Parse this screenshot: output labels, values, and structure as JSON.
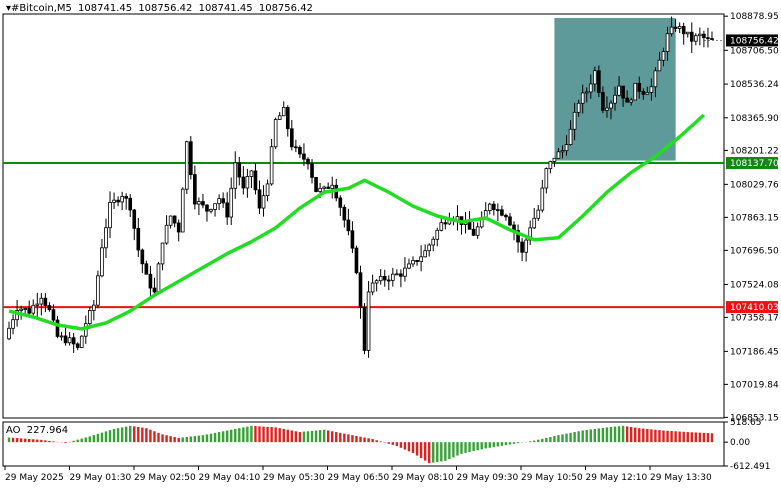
{
  "header": {
    "symbol": "▾#Bitcoin,M5",
    "open": "108741.45",
    "high": "108756.42",
    "low": "108741.45",
    "close": "108756.42"
  },
  "ao_header": {
    "name": "AO",
    "value": "227.964"
  },
  "colors": {
    "candle": "#000000",
    "ma": "#22dd22",
    "support": "#ee1111",
    "resistance": "#118811",
    "box": "#5f9a9a",
    "ao_up": "#3aa13a",
    "ao_down": "#dd2222"
  },
  "chart_data": [
    {
      "type": "candlestick",
      "title": "",
      "ylim": [
        106850,
        108890
      ],
      "y_ticks": [
        "108878.95",
        "108706.50",
        "108536.24",
        "108365.90",
        "108201.22",
        "108029.76",
        "107863.15",
        "107696.50",
        "107524.08",
        "107358.17",
        "107186.45",
        "107019.84",
        "106853.15"
      ],
      "x_ticks": [
        "29 May 2025",
        "29 May 01:30",
        "29 May 02:50",
        "29 May 04:10",
        "29 May 05:30",
        "29 May 06:50",
        "29 May 08:10",
        "29 May 09:30",
        "29 May 10:50",
        "29 May 12:10",
        "29 May 13:30"
      ],
      "current_price_label": "108756.42",
      "current_price": 108756.42,
      "levels": [
        {
          "label": "108137.70",
          "value": 108137.7,
          "kind": "resistance"
        },
        {
          "label": "107410.03",
          "value": 107410.03,
          "kind": "support"
        }
      ],
      "highlight_box": {
        "x_from": 135,
        "x_to": 165,
        "y_from": 108150,
        "y_to": 108870
      },
      "moving_average": [
        [
          0,
          107390
        ],
        [
          6,
          107360
        ],
        [
          12,
          107320
        ],
        [
          18,
          107300
        ],
        [
          24,
          107330
        ],
        [
          30,
          107390
        ],
        [
          36,
          107470
        ],
        [
          42,
          107540
        ],
        [
          48,
          107610
        ],
        [
          54,
          107680
        ],
        [
          60,
          107740
        ],
        [
          66,
          107810
        ],
        [
          72,
          107910
        ],
        [
          78,
          107990
        ],
        [
          84,
          108010
        ],
        [
          88,
          108050
        ],
        [
          94,
          107990
        ],
        [
          100,
          107920
        ],
        [
          106,
          107870
        ],
        [
          112,
          107840
        ],
        [
          118,
          107860
        ],
        [
          124,
          107800
        ],
        [
          130,
          107750
        ],
        [
          136,
          107760
        ],
        [
          142,
          107870
        ],
        [
          148,
          107990
        ],
        [
          154,
          108090
        ],
        [
          160,
          108170
        ],
        [
          166,
          108270
        ],
        [
          172,
          108380
        ]
      ],
      "ohlc_count": 175,
      "ohlc_seed_path": [
        [
          0,
          107250
        ],
        [
          3,
          107410
        ],
        [
          6,
          107390
        ],
        [
          9,
          107470
        ],
        [
          11,
          107390
        ],
        [
          13,
          107260
        ],
        [
          16,
          107240
        ],
        [
          18,
          107200
        ],
        [
          20,
          107330
        ],
        [
          22,
          107420
        ],
        [
          24,
          107720
        ],
        [
          26,
          107920
        ],
        [
          29,
          107980
        ],
        [
          31,
          107920
        ],
        [
          33,
          107700
        ],
        [
          35,
          107560
        ],
        [
          37,
          107480
        ],
        [
          39,
          107750
        ],
        [
          41,
          107870
        ],
        [
          43,
          107800
        ],
        [
          45,
          108240
        ],
        [
          47,
          107950
        ],
        [
          50,
          107900
        ],
        [
          53,
          107960
        ],
        [
          55,
          107880
        ],
        [
          57,
          108140
        ],
        [
          59,
          108000
        ],
        [
          61,
          108100
        ],
        [
          63,
          107900
        ],
        [
          65,
          108050
        ],
        [
          67,
          108350
        ],
        [
          69,
          108400
        ],
        [
          71,
          108230
        ],
        [
          73,
          108170
        ],
        [
          75,
          108150
        ],
        [
          77,
          108000
        ],
        [
          79,
          108000
        ],
        [
          81,
          108040
        ],
        [
          83,
          107920
        ],
        [
          85,
          107780
        ],
        [
          87,
          107600
        ],
        [
          89,
          107200
        ],
        [
          90,
          107500
        ],
        [
          92,
          107540
        ],
        [
          95,
          107560
        ],
        [
          98,
          107580
        ],
        [
          101,
          107630
        ],
        [
          104,
          107690
        ],
        [
          106,
          107760
        ],
        [
          108,
          107830
        ],
        [
          110,
          107870
        ],
        [
          112,
          107860
        ],
        [
          114,
          107820
        ],
        [
          116,
          107780
        ],
        [
          118,
          107840
        ],
        [
          120,
          107940
        ],
        [
          122,
          107900
        ],
        [
          124,
          107880
        ],
        [
          126,
          107800
        ],
        [
          128,
          107680
        ],
        [
          130,
          107820
        ],
        [
          132,
          107900
        ],
        [
          134,
          108100
        ],
        [
          136,
          108170
        ],
        [
          138,
          108200
        ],
        [
          140,
          108300
        ],
        [
          142,
          108450
        ],
        [
          144,
          108500
        ],
        [
          146,
          108600
        ],
        [
          148,
          108420
        ],
        [
          150,
          108450
        ],
        [
          152,
          108530
        ],
        [
          154,
          108430
        ],
        [
          156,
          108520
        ],
        [
          158,
          108500
        ],
        [
          160,
          108520
        ],
        [
          162,
          108650
        ],
        [
          164,
          108780
        ],
        [
          166,
          108830
        ],
        [
          168,
          108800
        ],
        [
          170,
          108760
        ],
        [
          172,
          108780
        ],
        [
          174,
          108756
        ]
      ]
    },
    {
      "type": "bar",
      "title": "",
      "ylim": [
        -612.491,
        518.656
      ],
      "y_ticks": [
        "518.65",
        "0.00",
        "-612.491"
      ],
      "indicator": "AO",
      "values_seed": [
        [
          0,
          120
        ],
        [
          8,
          60
        ],
        [
          14,
          -20
        ],
        [
          20,
          150
        ],
        [
          26,
          340
        ],
        [
          30,
          420
        ],
        [
          34,
          360
        ],
        [
          38,
          200
        ],
        [
          42,
          110
        ],
        [
          48,
          180
        ],
        [
          54,
          300
        ],
        [
          60,
          420
        ],
        [
          66,
          380
        ],
        [
          72,
          260
        ],
        [
          78,
          320
        ],
        [
          84,
          200
        ],
        [
          90,
          80
        ],
        [
          96,
          -100
        ],
        [
          100,
          -280
        ],
        [
          104,
          -540
        ],
        [
          108,
          -480
        ],
        [
          112,
          -300
        ],
        [
          118,
          -160
        ],
        [
          124,
          -60
        ],
        [
          130,
          40
        ],
        [
          136,
          180
        ],
        [
          142,
          300
        ],
        [
          148,
          380
        ],
        [
          152,
          420
        ],
        [
          156,
          360
        ],
        [
          162,
          300
        ],
        [
          168,
          260
        ],
        [
          174,
          228
        ]
      ]
    }
  ]
}
